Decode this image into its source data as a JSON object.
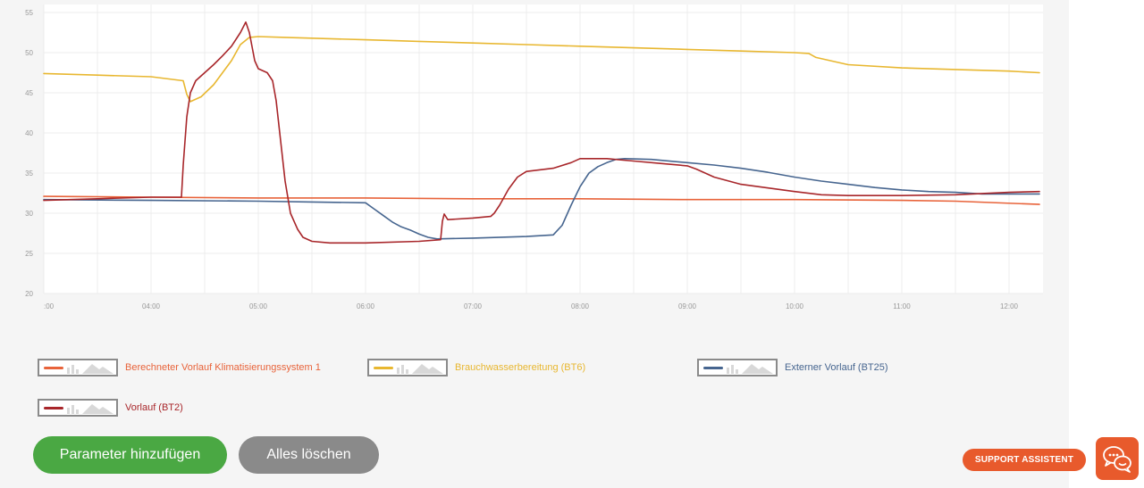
{
  "chart_data": {
    "type": "line",
    "x_ticks": [
      ":00",
      "04:00",
      "05:00",
      "06:00",
      "07:00",
      "08:00",
      "09:00",
      "10:00",
      "11:00",
      "12:00"
    ],
    "x_range": [
      "03:00",
      "12:17"
    ],
    "y_ticks": [
      "20",
      "25",
      "30",
      "35",
      "40",
      "45",
      "50",
      "55"
    ],
    "ylim": [
      20,
      56
    ],
    "grid": true,
    "series": [
      {
        "name": "Berechneter Vorlauf Klimatisierungssystem 1",
        "color": "#e8633a",
        "points": [
          [
            "03:00",
            32.1
          ],
          [
            "04:00",
            32.0
          ],
          [
            "05:00",
            31.9
          ],
          [
            "06:00",
            31.9
          ],
          [
            "07:00",
            31.8
          ],
          [
            "08:00",
            31.8
          ],
          [
            "09:00",
            31.7
          ],
          [
            "10:00",
            31.7
          ],
          [
            "11:00",
            31.6
          ],
          [
            "11:30",
            31.5
          ],
          [
            "12:17",
            31.1
          ]
        ]
      },
      {
        "name": "Brauchwasserbereitung (BT6)",
        "color": "#e8b730",
        "points": [
          [
            "03:00",
            47.4
          ],
          [
            "03:30",
            47.2
          ],
          [
            "04:00",
            47.0
          ],
          [
            "04:18",
            46.5
          ],
          [
            "04:20",
            44.8
          ],
          [
            "04:22",
            43.9
          ],
          [
            "04:28",
            44.5
          ],
          [
            "04:35",
            46.0
          ],
          [
            "04:40",
            47.5
          ],
          [
            "04:45",
            49.0
          ],
          [
            "04:50",
            51.0
          ],
          [
            "04:55",
            51.9
          ],
          [
            "05:00",
            52.0
          ],
          [
            "05:15",
            51.9
          ],
          [
            "05:30",
            51.8
          ],
          [
            "06:00",
            51.6
          ],
          [
            "06:30",
            51.4
          ],
          [
            "07:00",
            51.2
          ],
          [
            "07:30",
            51.0
          ],
          [
            "08:00",
            50.8
          ],
          [
            "08:30",
            50.6
          ],
          [
            "09:00",
            50.4
          ],
          [
            "09:30",
            50.2
          ],
          [
            "10:00",
            50.0
          ],
          [
            "10:08",
            49.9
          ],
          [
            "10:12",
            49.4
          ],
          [
            "10:20",
            49.0
          ],
          [
            "10:30",
            48.5
          ],
          [
            "11:00",
            48.1
          ],
          [
            "11:30",
            47.9
          ],
          [
            "12:00",
            47.7
          ],
          [
            "12:17",
            47.5
          ]
        ]
      },
      {
        "name": "Externer Vorlauf (BT25)",
        "color": "#46658f",
        "points": [
          [
            "03:00",
            31.7
          ],
          [
            "04:00",
            31.6
          ],
          [
            "05:00",
            31.5
          ],
          [
            "05:30",
            31.4
          ],
          [
            "06:00",
            31.3
          ],
          [
            "06:05",
            30.5
          ],
          [
            "06:10",
            29.7
          ],
          [
            "06:15",
            28.9
          ],
          [
            "06:20",
            28.3
          ],
          [
            "06:25",
            27.9
          ],
          [
            "06:30",
            27.4
          ],
          [
            "06:35",
            27.0
          ],
          [
            "06:40",
            26.8
          ],
          [
            "07:00",
            26.9
          ],
          [
            "07:30",
            27.1
          ],
          [
            "07:45",
            27.3
          ],
          [
            "07:50",
            28.5
          ],
          [
            "07:55",
            31.0
          ],
          [
            "08:00",
            33.3
          ],
          [
            "08:05",
            35.0
          ],
          [
            "08:10",
            35.8
          ],
          [
            "08:15",
            36.3
          ],
          [
            "08:20",
            36.7
          ],
          [
            "08:25",
            36.8
          ],
          [
            "08:40",
            36.7
          ],
          [
            "09:00",
            36.3
          ],
          [
            "09:15",
            36.0
          ],
          [
            "09:30",
            35.6
          ],
          [
            "09:45",
            35.1
          ],
          [
            "10:00",
            34.5
          ],
          [
            "10:15",
            34.0
          ],
          [
            "10:30",
            33.6
          ],
          [
            "10:45",
            33.2
          ],
          [
            "11:00",
            32.9
          ],
          [
            "11:15",
            32.7
          ],
          [
            "11:30",
            32.6
          ],
          [
            "11:45",
            32.4
          ],
          [
            "12:00",
            32.4
          ],
          [
            "12:17",
            32.4
          ]
        ]
      },
      {
        "name": "Vorlauf (BT2)",
        "color": "#a8262a",
        "points": [
          [
            "03:00",
            31.6
          ],
          [
            "03:30",
            31.8
          ],
          [
            "04:00",
            32.0
          ],
          [
            "04:17",
            32.0
          ],
          [
            "04:18",
            36.0
          ],
          [
            "04:20",
            42.0
          ],
          [
            "04:22",
            45.0
          ],
          [
            "04:25",
            46.5
          ],
          [
            "04:30",
            47.5
          ],
          [
            "04:35",
            48.5
          ],
          [
            "04:40",
            49.6
          ],
          [
            "04:45",
            50.8
          ],
          [
            "04:50",
            52.5
          ],
          [
            "04:53",
            53.8
          ],
          [
            "04:55",
            52.5
          ],
          [
            "04:58",
            49.0
          ],
          [
            "05:00",
            48.0
          ],
          [
            "05:05",
            47.5
          ],
          [
            "05:08",
            46.5
          ],
          [
            "05:10",
            44.0
          ],
          [
            "05:13",
            38.0
          ],
          [
            "05:15",
            34.0
          ],
          [
            "05:18",
            30.0
          ],
          [
            "05:22",
            28.0
          ],
          [
            "05:25",
            27.0
          ],
          [
            "05:30",
            26.5
          ],
          [
            "05:40",
            26.3
          ],
          [
            "06:00",
            26.3
          ],
          [
            "06:30",
            26.5
          ],
          [
            "06:42",
            26.7
          ],
          [
            "06:43",
            29.0
          ],
          [
            "06:44",
            29.9
          ],
          [
            "06:46",
            29.2
          ],
          [
            "07:00",
            29.4
          ],
          [
            "07:10",
            29.6
          ],
          [
            "07:12",
            30.0
          ],
          [
            "07:15",
            31.0
          ],
          [
            "07:20",
            33.0
          ],
          [
            "07:25",
            34.5
          ],
          [
            "07:30",
            35.2
          ],
          [
            "07:45",
            35.6
          ],
          [
            "07:55",
            36.3
          ],
          [
            "08:00",
            36.8
          ],
          [
            "08:15",
            36.8
          ],
          [
            "08:30",
            36.5
          ],
          [
            "08:45",
            36.2
          ],
          [
            "09:00",
            35.9
          ],
          [
            "09:05",
            35.5
          ],
          [
            "09:15",
            34.5
          ],
          [
            "09:30",
            33.6
          ],
          [
            "10:00",
            32.7
          ],
          [
            "10:15",
            32.3
          ],
          [
            "10:30",
            32.2
          ],
          [
            "11:00",
            32.2
          ],
          [
            "11:30",
            32.3
          ],
          [
            "12:00",
            32.6
          ],
          [
            "12:17",
            32.7
          ]
        ]
      }
    ]
  },
  "legend": [
    {
      "label": "Berechneter Vorlauf Klimatisierungssystem 1",
      "color": "#e8633a"
    },
    {
      "label": "Brauchwasserbereitung (BT6)",
      "color": "#e8b730"
    },
    {
      "label": "Externer Vorlauf (BT25)",
      "color": "#46658f"
    },
    {
      "label": "Vorlauf (BT2)",
      "color": "#a8262a"
    }
  ],
  "buttons": {
    "add_parameter": "Parameter hinzufügen",
    "clear_all": "Alles löschen"
  },
  "support": {
    "label": "SUPPORT ASSISTENT",
    "icon": "chat-bubbles-icon"
  },
  "colors": {
    "accent_green": "#4aa843",
    "neutral_button": "#8a8a8a",
    "support_orange": "#e85a2c"
  }
}
